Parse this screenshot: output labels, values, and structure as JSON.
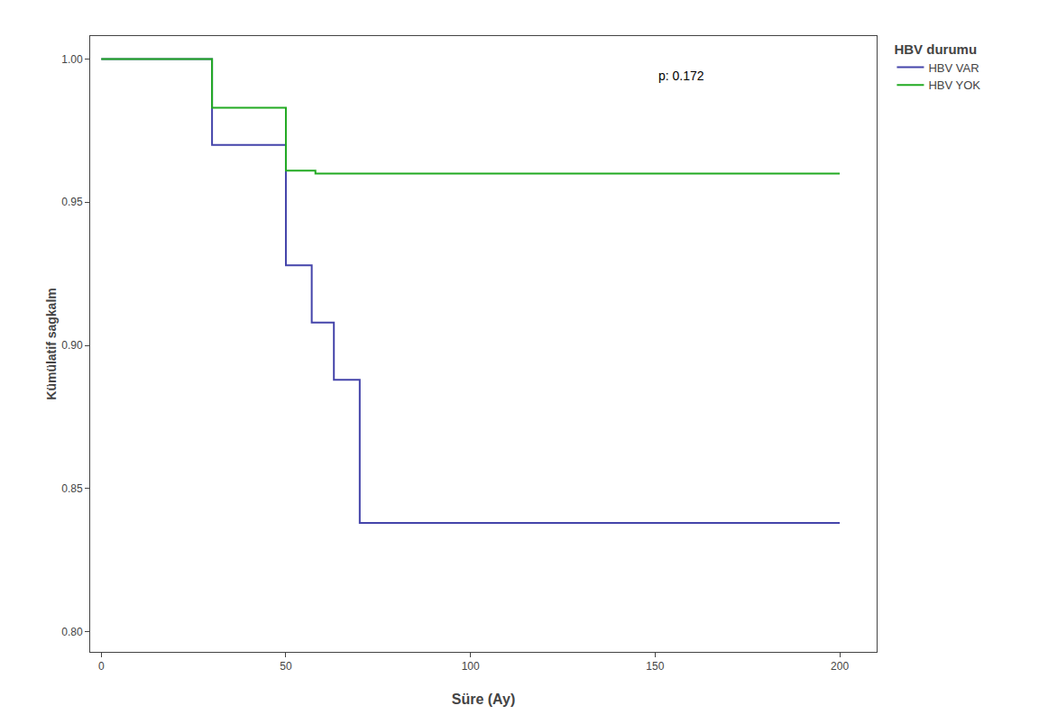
{
  "chart_data": {
    "type": "line",
    "line_style": "step",
    "xlabel": "Süre (Ay)",
    "ylabel": "Kümülatif sagkalm",
    "annotation": "p: 0.172",
    "legend_title": "HBV durumu",
    "xlim": [
      -3,
      210
    ],
    "ylim": [
      0.793,
      1.008
    ],
    "xticks": [
      0,
      50,
      100,
      150,
      200
    ],
    "yticks": [
      {
        "value": 0.8,
        "label": "0.80"
      },
      0.85,
      {
        "value": 0.9,
        "label": "0.90"
      },
      0.95,
      {
        "value": 1.0,
        "label": "1.00"
      }
    ],
    "grid": false,
    "series": [
      {
        "name": "HBV VAR",
        "color": "#4444aa",
        "x": [
          0,
          30,
          30,
          50,
          50,
          57,
          57,
          63,
          63,
          70,
          70,
          88,
          88,
          200
        ],
        "values": [
          1.0,
          1.0,
          0.97,
          0.97,
          0.928,
          0.928,
          0.908,
          0.908,
          0.888,
          0.888,
          0.838,
          0.838,
          0.838,
          0.838
        ]
      },
      {
        "name": "HBV YOK",
        "color": "#22aa22",
        "x": [
          0,
          30,
          30,
          50,
          50,
          58,
          58,
          200
        ],
        "values": [
          1.0,
          1.0,
          0.983,
          0.983,
          0.961,
          0.961,
          0.96,
          0.96
        ]
      }
    ]
  }
}
